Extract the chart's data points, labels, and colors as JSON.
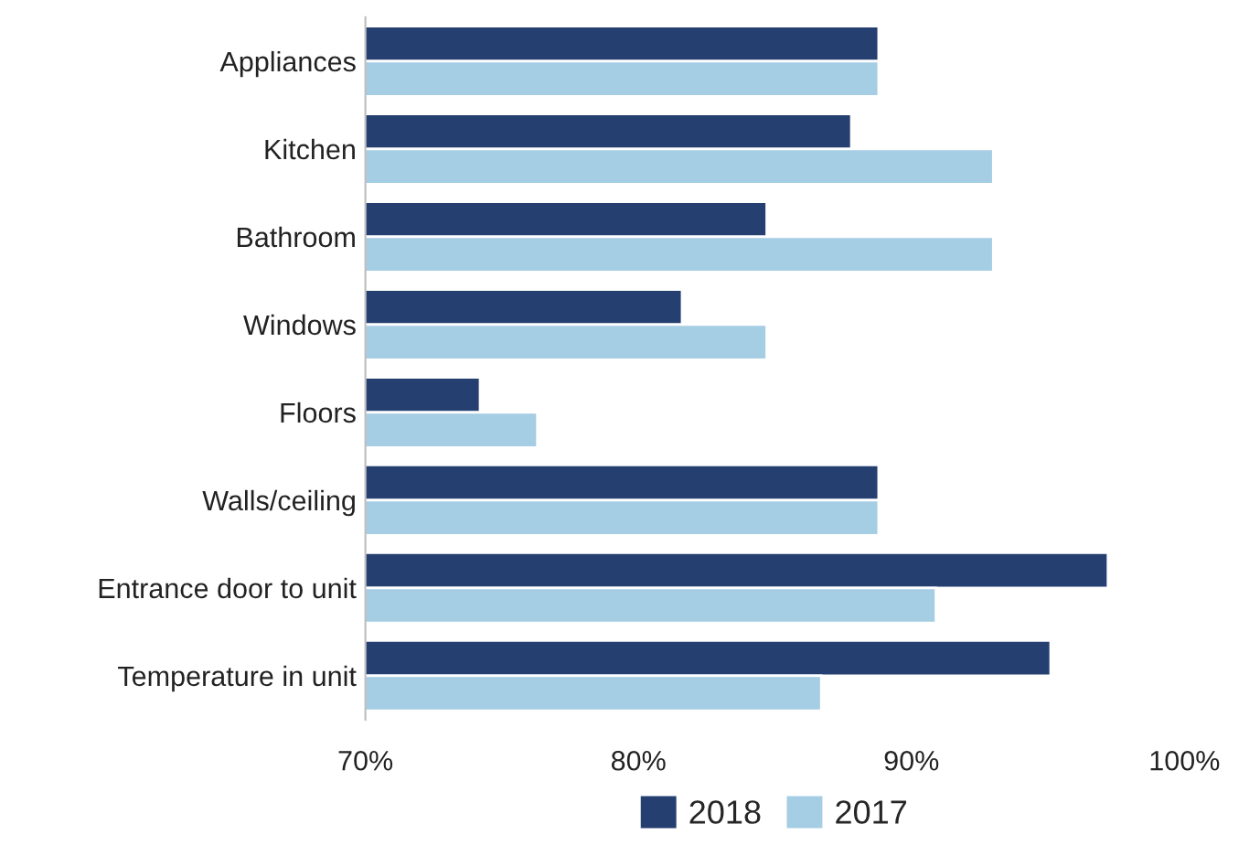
{
  "chart_data": {
    "type": "bar",
    "orientation": "horizontal",
    "categories": [
      "Appliances",
      "Kitchen",
      "Bathroom",
      "Windows",
      "Floors",
      "Walls/ceiling",
      "Entrance door to unit",
      "Temperature in unit"
    ],
    "series": [
      {
        "name": "2018",
        "color": "#243f70",
        "values": [
          88.8,
          87.8,
          84.7,
          81.6,
          74.2,
          88.8,
          97.2,
          95.1
        ]
      },
      {
        "name": "2017",
        "color": "#a5cde4",
        "values": [
          88.8,
          93.0,
          93.0,
          84.7,
          76.3,
          88.8,
          90.9,
          86.7
        ]
      }
    ],
    "xlim": [
      70,
      100
    ],
    "xticks": [
      {
        "value": 70,
        "label": "70%"
      },
      {
        "value": 80,
        "label": "80%"
      },
      {
        "value": 90,
        "label": "90%"
      },
      {
        "value": 100,
        "label": "100%"
      }
    ],
    "grid": false,
    "legend": "bottom"
  }
}
